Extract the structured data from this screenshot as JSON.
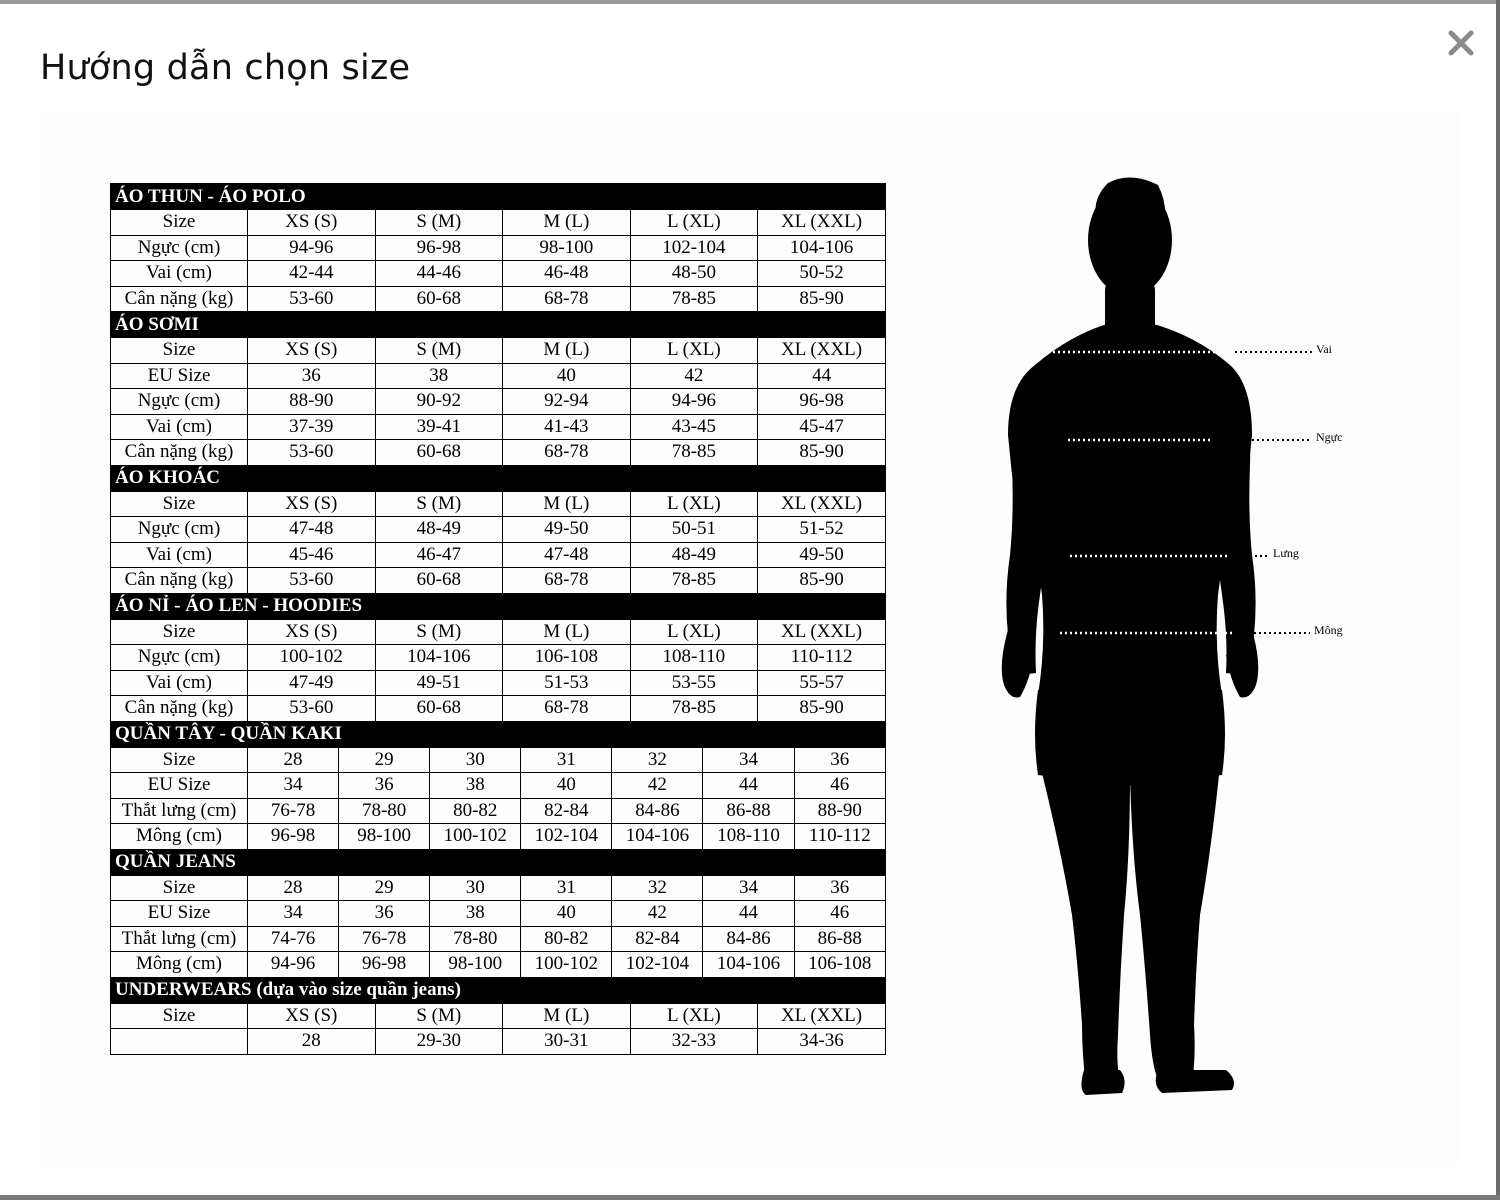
{
  "modal": {
    "title": "Hướng dẫn chọn size",
    "close_icon": "close-icon"
  },
  "colors": {
    "section_bg": "#000000",
    "section_fg": "#ffffff",
    "border": "#000000"
  },
  "sections": [
    {
      "title": "ÁO THUN - ÁO POLO",
      "header": [
        "Size",
        "XS (S)",
        "S (M)",
        "M (L)",
        "L (XL)",
        "XL (XXL)"
      ],
      "rows": [
        [
          "Ngực (cm)",
          "94-96",
          "96-98",
          "98-100",
          "102-104",
          "104-106"
        ],
        [
          "Vai (cm)",
          "42-44",
          "44-46",
          "46-48",
          "48-50",
          "50-52"
        ],
        [
          "Cân nặng (kg)",
          "53-60",
          "60-68",
          "68-78",
          "78-85",
          "85-90"
        ]
      ]
    },
    {
      "title": "ÁO SƠMI",
      "header": [
        "Size",
        "XS (S)",
        "S (M)",
        "M (L)",
        "L (XL)",
        "XL (XXL)"
      ],
      "rows": [
        [
          "EU Size",
          "36",
          "38",
          "40",
          "42",
          "44"
        ],
        [
          "Ngực (cm)",
          "88-90",
          "90-92",
          "92-94",
          "94-96",
          "96-98"
        ],
        [
          "Vai (cm)",
          "37-39",
          "39-41",
          "41-43",
          "43-45",
          "45-47"
        ],
        [
          "Cân nặng (kg)",
          "53-60",
          "60-68",
          "68-78",
          "78-85",
          "85-90"
        ]
      ]
    },
    {
      "title": "ÁO KHOÁC",
      "header": [
        "Size",
        "XS (S)",
        "S (M)",
        "M (L)",
        "L (XL)",
        "XL (XXL)"
      ],
      "rows": [
        [
          "Ngực (cm)",
          "47-48",
          "48-49",
          "49-50",
          "50-51",
          "51-52"
        ],
        [
          "Vai (cm)",
          "45-46",
          "46-47",
          "47-48",
          "48-49",
          "49-50"
        ],
        [
          "Cân nặng (kg)",
          "53-60",
          "60-68",
          "68-78",
          "78-85",
          "85-90"
        ]
      ]
    },
    {
      "title": "ÁO NỈ - ÁO LEN - HOODIES",
      "header": [
        "Size",
        "XS (S)",
        "S (M)",
        "M (L)",
        "L (XL)",
        "XL (XXL)"
      ],
      "rows": [
        [
          "Ngực (cm)",
          "100-102",
          "104-106",
          "106-108",
          "108-110",
          "110-112"
        ],
        [
          "Vai (cm)",
          "47-49",
          "49-51",
          "51-53",
          "53-55",
          "55-57"
        ],
        [
          "Cân nặng (kg)",
          "53-60",
          "60-68",
          "68-78",
          "78-85",
          "85-90"
        ]
      ]
    },
    {
      "title": "QUẦN TÂY - QUẦN KAKI",
      "header": [
        "Size",
        "28",
        "29",
        "30",
        "31",
        "32",
        "34",
        "36"
      ],
      "rows": [
        [
          "EU Size",
          "34",
          "36",
          "38",
          "40",
          "42",
          "44",
          "46"
        ],
        [
          "Thắt lưng (cm)",
          "76-78",
          "78-80",
          "80-82",
          "82-84",
          "84-86",
          "86-88",
          "88-90"
        ],
        [
          "Mông (cm)",
          "96-98",
          "98-100",
          "100-102",
          "102-104",
          "104-106",
          "108-110",
          "110-112"
        ]
      ]
    },
    {
      "title": "QUẦN JEANS",
      "header": [
        "Size",
        "28",
        "29",
        "30",
        "31",
        "32",
        "34",
        "36"
      ],
      "rows": [
        [
          "EU Size",
          "34",
          "36",
          "38",
          "40",
          "42",
          "44",
          "46"
        ],
        [
          "Thắt lưng (cm)",
          "74-76",
          "76-78",
          "78-80",
          "80-82",
          "82-84",
          "84-86",
          "86-88"
        ],
        [
          "Mông (cm)",
          "94-96",
          "96-98",
          "98-100",
          "100-102",
          "102-104",
          "104-106",
          "106-108"
        ]
      ]
    },
    {
      "title": "UNDERWEARS (dựa vào size quần jeans)",
      "header": [
        "Size",
        "XS (S)",
        "S (M)",
        "M (L)",
        "L (XL)",
        "XL (XXL)"
      ],
      "rows": [
        [
          "",
          "28",
          "29-30",
          "30-31",
          "32-33",
          "34-36"
        ]
      ]
    }
  ],
  "body_measurements": {
    "figure_icon": "body-silhouette",
    "labels": [
      "Vai",
      "Ngực",
      "Lưng",
      "Mông"
    ]
  }
}
